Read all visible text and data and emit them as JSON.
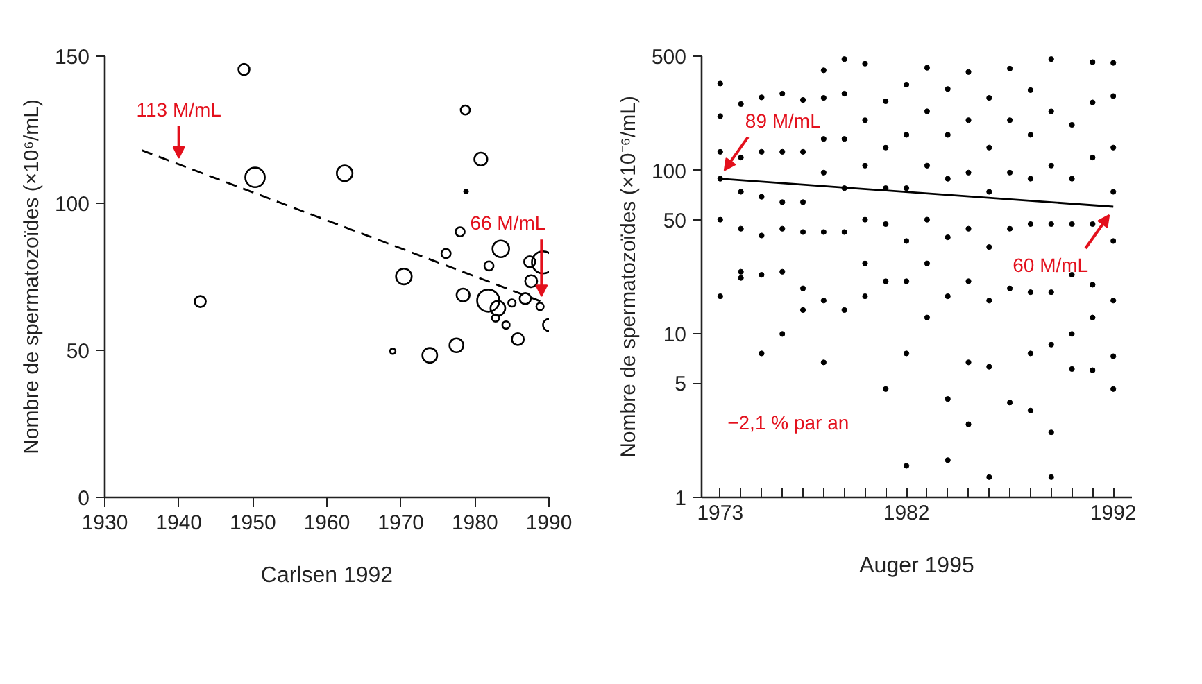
{
  "chart_data": [
    {
      "type": "bubble",
      "xlabel": "Carlsen 1992",
      "ylabel": "Nombre de spermatozoïdes (×10⁶/mL)",
      "xlim": [
        1930,
        1990
      ],
      "ylim": [
        0,
        150
      ],
      "xticks": [
        1930,
        1940,
        1950,
        1960,
        1970,
        1980,
        1990
      ],
      "yticks": [
        0,
        50,
        100,
        150
      ],
      "grid": false,
      "annotations": [
        {
          "text": "113 M/mL",
          "x": 1940,
          "y": 113
        },
        {
          "text": "66 M/mL",
          "x": 1989,
          "y": 66
        }
      ],
      "series": [
        {
          "color": "#000000",
          "marker": "circle",
          "x": [
            1942.9,
            1948.8,
            1950.3,
            1962.4,
            1968.9,
            1970.4,
            1973.9,
            1976.1,
            1977.5,
            1978.0,
            1978.4,
            1978.7,
            1980.8,
            1981.8,
            1981.9,
            1982.8,
            1983.1,
            1983.5,
            1984.2,
            1985.0,
            1985.8,
            1986.8,
            1987.4,
            1987.6,
            1988.8,
            1989.2,
            1990.0
          ],
          "values": [
            66.6,
            145.5,
            108.8,
            110.2,
            49.7,
            75.1,
            48.3,
            82.9,
            51.7,
            90.3,
            68.8,
            131.7,
            115.0,
            66.9,
            78.7,
            61.0,
            64.3,
            84.5,
            58.6,
            66.1,
            53.8,
            67.6,
            80.1,
            73.5,
            64.9,
            79.9,
            58.6
          ],
          "sizes": [
            0.25,
            0.25,
            0.77,
            0.5,
            0.06,
            0.5,
            0.44,
            0.17,
            0.39,
            0.17,
            0.34,
            0.17,
            0.34,
            1,
            0.17,
            0.11,
            0.44,
            0.56,
            0.11,
            0.11,
            0.29,
            0.25,
            0.25,
            0.29,
            0.11,
            1,
            0.29
          ]
        },
        {
          "type": "scatter",
          "color": "#000000",
          "marker": "circle",
          "x": [
            1978.8
          ],
          "values": [
            104
          ]
        },
        {
          "type": "line",
          "color": "#000000",
          "line_style": "dashed",
          "x": [
            1935,
            1989.6
          ],
          "values": [
            118,
            66
          ]
        }
      ]
    },
    {
      "type": "scatter",
      "xlabel": "Auger 1995",
      "ylabel": "Nombre de spermatozoïdes (×10⁻⁶/mL)",
      "log": "y",
      "xlim": [
        1972.1,
        1992.9
      ],
      "ylim": [
        1,
        500
      ],
      "xticks": [
        1973,
        {
          "value": 1974,
          "label": null
        },
        {
          "value": 1975,
          "label": null
        },
        {
          "value": 1976,
          "label": null
        },
        {
          "value": 1977,
          "label": null
        },
        {
          "value": 1978,
          "label": null
        },
        {
          "value": 1979,
          "label": null
        },
        {
          "value": 1980,
          "label": null
        },
        {
          "value": 1981,
          "label": null
        },
        1982,
        {
          "value": 1983,
          "label": null
        },
        {
          "value": 1984,
          "label": null
        },
        {
          "value": 1985,
          "label": null
        },
        {
          "value": 1986,
          "label": null
        },
        {
          "value": 1987,
          "label": null
        },
        {
          "value": 1988,
          "label": null
        },
        {
          "value": 1989,
          "label": null
        },
        {
          "value": 1990,
          "label": null
        },
        {
          "value": 1991,
          "label": null
        },
        1992
      ],
      "yticks": [
        1,
        5,
        10,
        50,
        100,
        500
      ],
      "grid": false,
      "annotations": [
        {
          "text": "89 M/mL",
          "x": 1973,
          "y": 89
        },
        {
          "text": "60 M/mL",
          "x": 1992,
          "y": 60
        },
        "−2,1 % par an"
      ],
      "series": [
        {
          "color": "#000000",
          "marker": "circle",
          "x": [
            1973,
            1973,
            1973,
            1973,
            1973,
            1973,
            1974,
            1974,
            1974,
            1974,
            1974,
            1974,
            1975,
            1975,
            1975,
            1975,
            1975,
            1975,
            1976,
            1976,
            1976,
            1976,
            1976,
            1976,
            1977,
            1977,
            1977,
            1977,
            1977,
            1977,
            1978,
            1978,
            1978,
            1978,
            1978,
            1978,
            1978,
            1979,
            1979,
            1979,
            1979,
            1979,
            1979,
            1980,
            1980,
            1980,
            1980,
            1980,
            1980,
            1981,
            1981,
            1981,
            1981,
            1981,
            1981,
            1982,
            1982,
            1982,
            1982,
            1982,
            1982,
            1982,
            1983,
            1983,
            1983,
            1983,
            1983,
            1983,
            1984,
            1984,
            1984,
            1984,
            1984,
            1984,
            1984,
            1985,
            1985,
            1985,
            1985,
            1985,
            1985,
            1985,
            1986,
            1986,
            1986,
            1986,
            1986,
            1986,
            1986,
            1987,
            1987,
            1987,
            1987,
            1987,
            1987,
            1988,
            1988,
            1988,
            1988,
            1988,
            1988,
            1988,
            1989,
            1989,
            1989,
            1989,
            1989,
            1989,
            1989,
            1989,
            1990,
            1990,
            1990,
            1990,
            1990,
            1990,
            1991,
            1991,
            1991,
            1991,
            1991,
            1991,
            1991,
            1992,
            1992,
            1992,
            1992,
            1992,
            1992,
            1992,
            1992
          ],
          "values": [
            340,
            215,
            130,
            89,
            50,
            17,
            255,
            120,
            74,
            44,
            24,
            22,
            280,
            130,
            69,
            40,
            23,
            7.6,
            295,
            130,
            64,
            44,
            24,
            10,
            270,
            130,
            64,
            42,
            19,
            14,
            410,
            278,
            156,
            97,
            42,
            16,
            6.7,
            480,
            295,
            156,
            78,
            42,
            14,
            450,
            203,
            107,
            50,
            27,
            17,
            265,
            138,
            78,
            47,
            21,
            4.6,
            335,
            165,
            78,
            37,
            21,
            7.6,
            1.56,
            425,
            230,
            107,
            50,
            27,
            12.6,
            315,
            165,
            89,
            39,
            17,
            4.0,
            1.69,
            400,
            203,
            97,
            44,
            21,
            6.7,
            2.8,
            278,
            138,
            74,
            34,
            16,
            6.3,
            1.33,
            420,
            203,
            97,
            44,
            19,
            3.8,
            310,
            165,
            89,
            47,
            18,
            7.6,
            3.4,
            480,
            230,
            107,
            47,
            18,
            8.6,
            2.5,
            1.33,
            190,
            89,
            47,
            23,
            10,
            6.1,
            460,
            261,
            120,
            47,
            20,
            12.6,
            6,
            455,
            285,
            138,
            74,
            37,
            16,
            7.3,
            4.6
          ]
        },
        {
          "type": "line",
          "color": "#000000",
          "line_style": "solid",
          "x": [
            1973,
            1992
          ],
          "values": [
            89,
            60
          ]
        }
      ]
    }
  ]
}
